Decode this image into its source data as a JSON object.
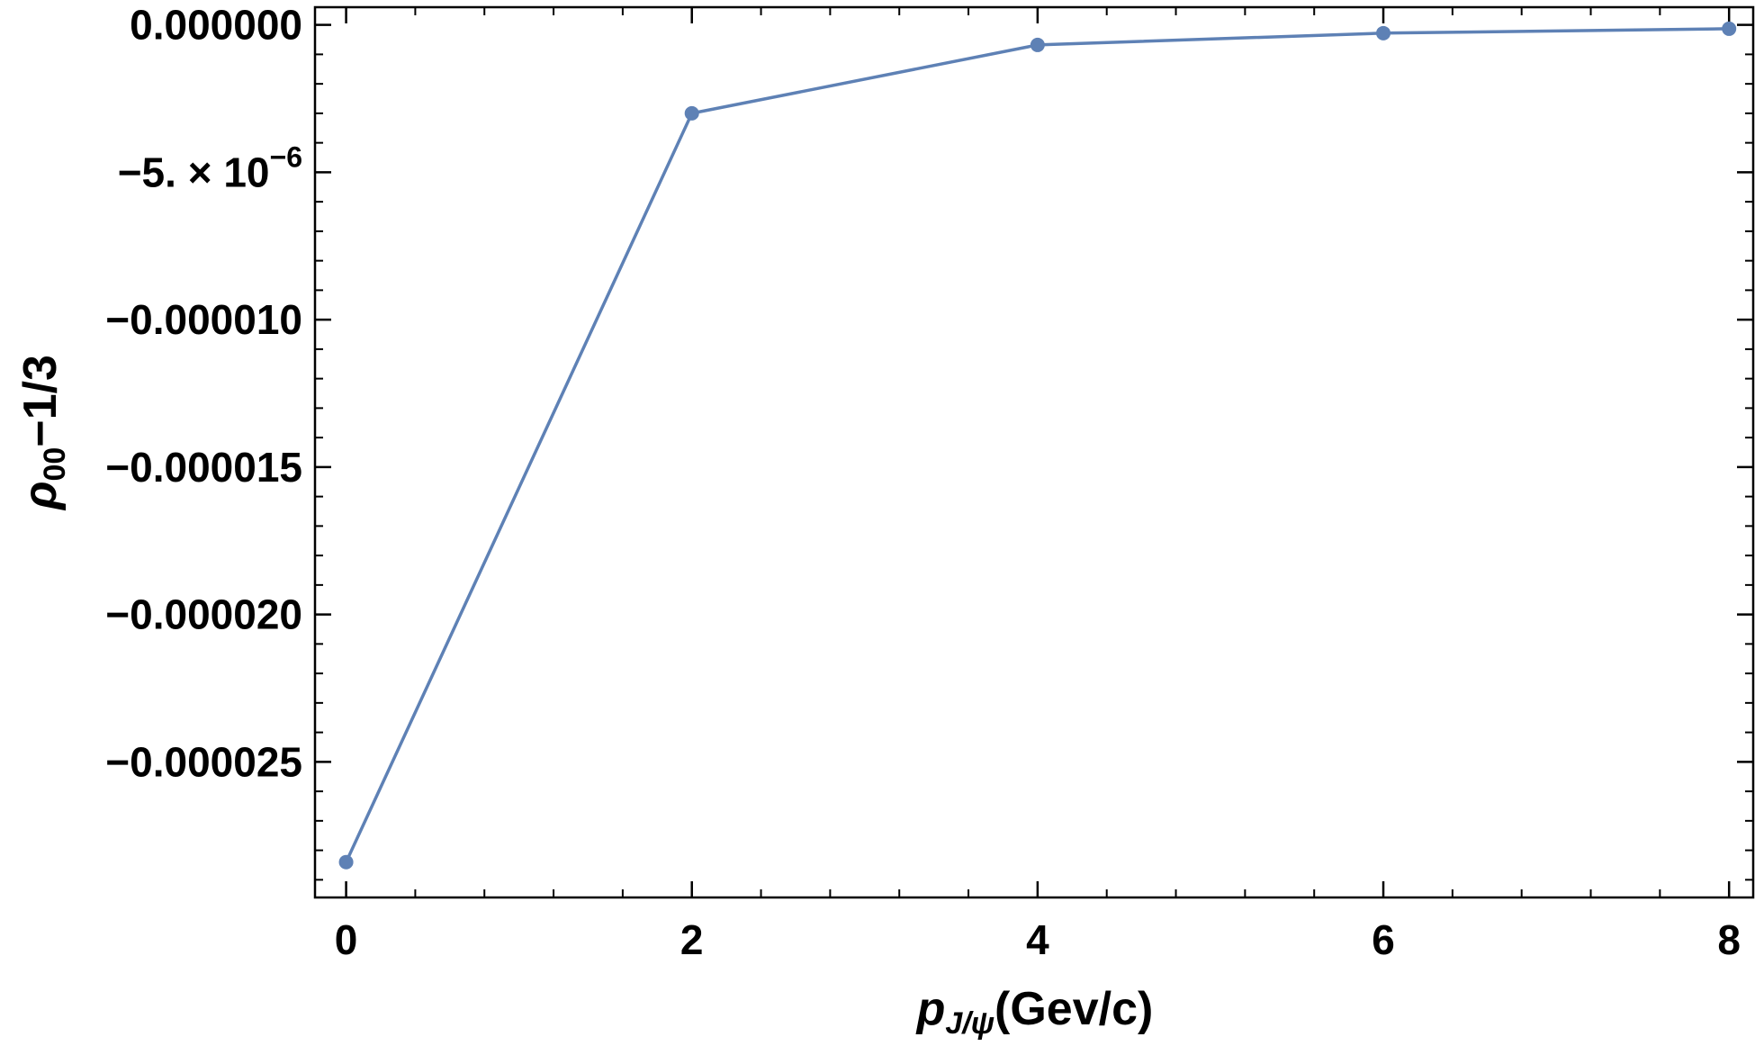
{
  "chart_data": {
    "type": "line",
    "title": "",
    "x": [
      0,
      2,
      4,
      6,
      8
    ],
    "series": [
      {
        "values": [
          -2.84e-05,
          -3e-06,
          -6.8e-07,
          -2.8e-07,
          -1.3e-07
        ]
      }
    ],
    "xlim": [
      -0.18,
      8.15
    ],
    "ylim": [
      -2.96e-05,
      6e-07
    ],
    "x_ticks": [
      {
        "value": 0,
        "label": "0"
      },
      {
        "value": 2,
        "label": "2"
      },
      {
        "value": 4,
        "label": "4"
      },
      {
        "value": 6,
        "label": "6"
      },
      {
        "value": 8,
        "label": "8"
      }
    ],
    "y_ticks": [
      {
        "value": 0,
        "label": "0.000000"
      },
      {
        "value": -5e-06,
        "label": "−5. × 10",
        "exponent": "−6"
      },
      {
        "value": -1e-05,
        "label": "−0.000010"
      },
      {
        "value": -1.5e-05,
        "label": "−0.000015"
      },
      {
        "value": -2e-05,
        "label": "−0.000020"
      },
      {
        "value": -2.5e-05,
        "label": "−0.000025"
      }
    ],
    "xlabel": {
      "main": "p",
      "subscript": "J/ψ",
      "suffix": "(Gev/c)"
    },
    "ylabel": {
      "main": "ρ",
      "subscript": "00",
      "suffix": "−1/3"
    },
    "grid": false,
    "legend": "none",
    "colors": {
      "series": "#5e81b5",
      "axis": "#000000",
      "background": "#ffffff"
    }
  }
}
